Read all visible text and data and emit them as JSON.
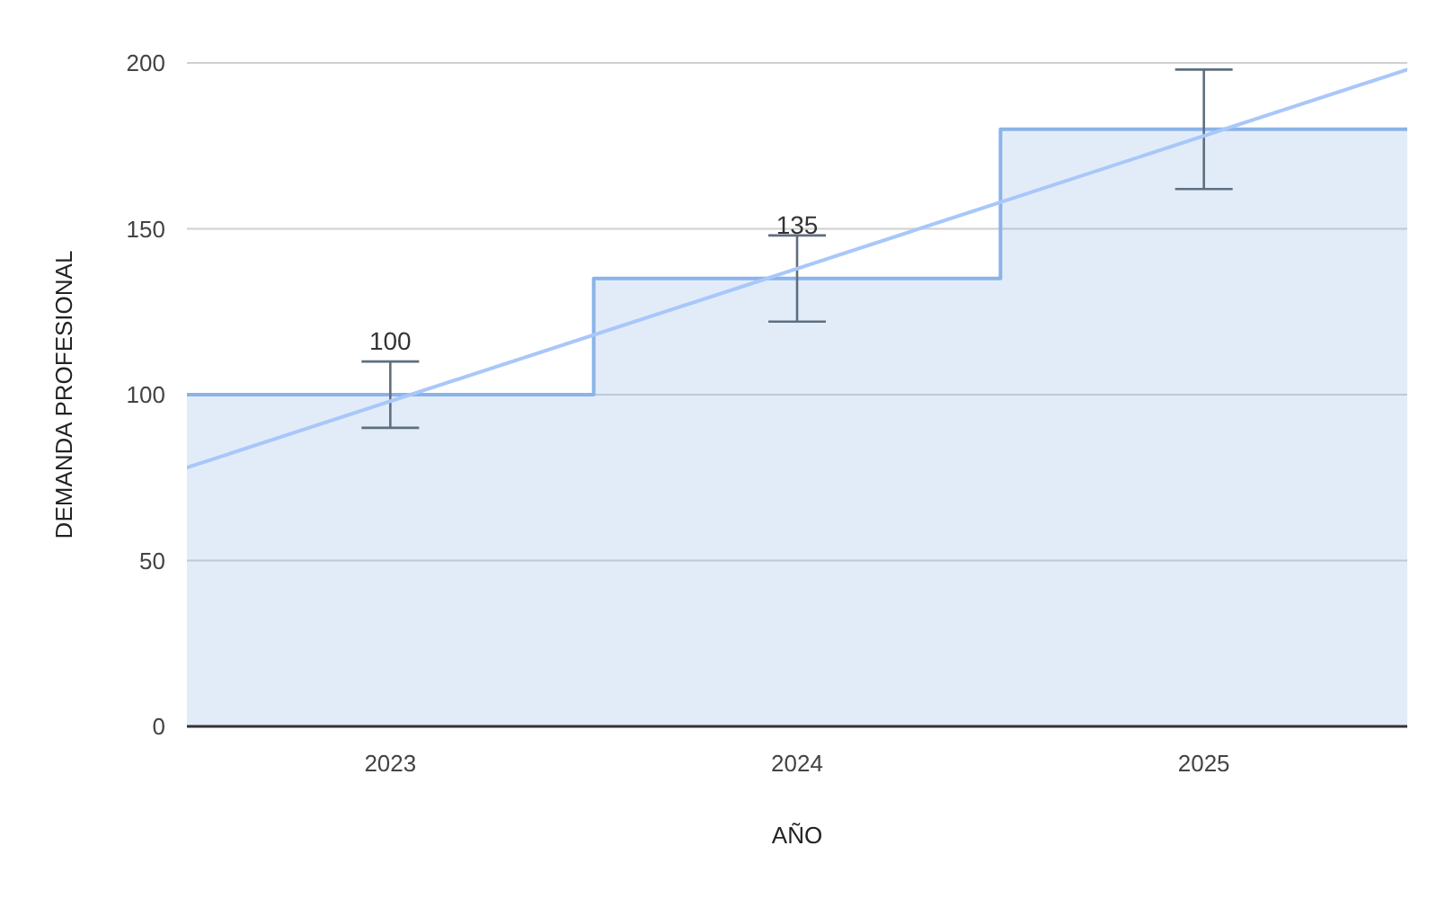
{
  "chart_data": {
    "type": "area",
    "xlabel": "AÑO",
    "ylabel": "DEMANDA PROFESIONAL",
    "xlim": [
      2022.5,
      2025.5
    ],
    "xticks": [
      2023,
      2024,
      2025
    ],
    "ylim": [
      0,
      200
    ],
    "yticks": [
      0,
      50,
      100,
      150,
      200
    ],
    "grid": "y",
    "series": [
      {
        "color": "#8ab4e8",
        "x": [
          2022.5,
          2023,
          2023.5,
          2023.5,
          2024,
          2024.5,
          2024.5,
          2025,
          2025.5
        ],
        "values": [
          100,
          100,
          100,
          135,
          135,
          135,
          180,
          180,
          180
        ],
        "errors": [
          null,
          10,
          null,
          null,
          13,
          null,
          null,
          18,
          null
        ],
        "value_labels": [
          null,
          "100",
          null,
          null,
          "135",
          null,
          null,
          null,
          null
        ]
      },
      {
        "type": "line",
        "color": "#a8c7fa",
        "x": [
          2022.5,
          2025.5
        ],
        "values": [
          78,
          198
        ]
      }
    ]
  }
}
